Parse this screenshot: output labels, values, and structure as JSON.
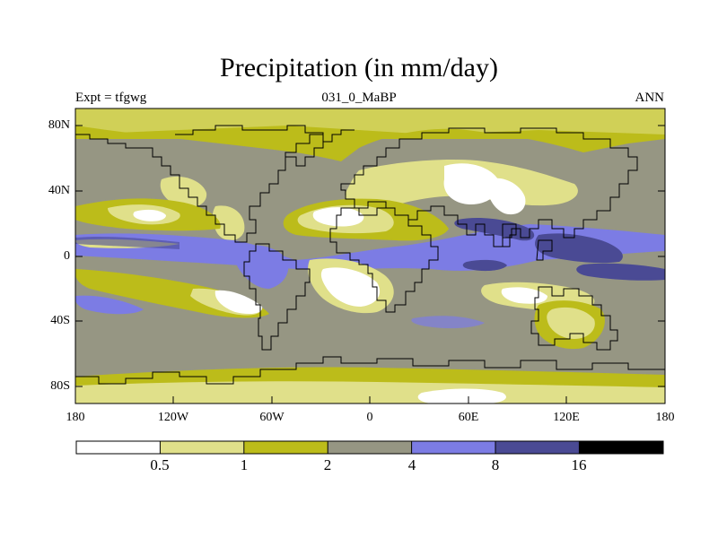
{
  "title": "Precipitation (in mm/day)",
  "subtitle_left": "Expt = tfgwg",
  "subtitle_center": "031_0_MaBP",
  "subtitle_right": "ANN",
  "y_axis_labels": [
    "80N",
    "40N",
    "0",
    "40S",
    "80S"
  ],
  "x_axis_labels": [
    "180",
    "120W",
    "60W",
    "0",
    "60E",
    "120E",
    "180"
  ],
  "colorbar": {
    "tick_labels": [
      "0.5",
      "1",
      "2",
      "4",
      "8",
      "16"
    ],
    "colors": [
      "#ffffff",
      "#e0e08a",
      "#bcbc1a",
      "#969683",
      "#7c7ce4",
      "#4a4a94",
      "#000000"
    ]
  },
  "colors": {
    "ocean_base": "#969683",
    "very_dry": "#ffffff",
    "dry": "#e0e08a",
    "moderate": "#bcbc1a",
    "wet": "#7c7ce4",
    "very_wet": "#4a4a94",
    "outline": "#000000"
  }
}
